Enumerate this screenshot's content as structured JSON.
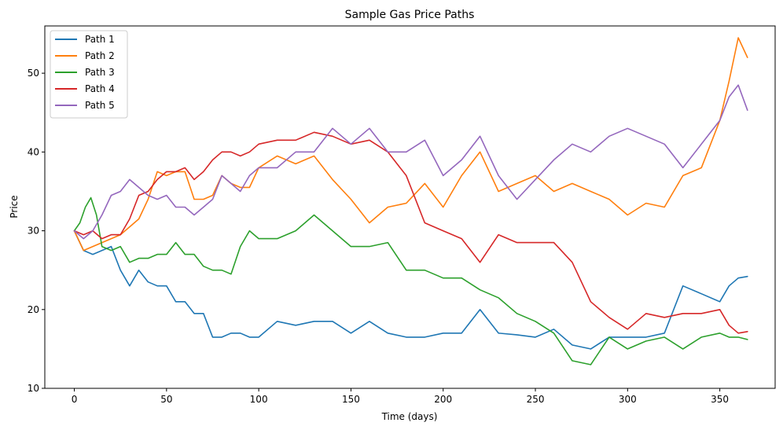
{
  "chart_data": {
    "type": "line",
    "title": "Sample Gas Price Paths",
    "xlabel": "Time (days)",
    "ylabel": "Price",
    "xlim": [
      -16,
      380
    ],
    "ylim": [
      10,
      56
    ],
    "xticks": [
      0,
      50,
      100,
      150,
      200,
      250,
      300,
      350
    ],
    "yticks": [
      10,
      20,
      30,
      40,
      50
    ],
    "legend_position": "top-left",
    "grid": false,
    "series": [
      {
        "name": "Path 1",
        "color": "#1f77b4",
        "x": [
          0,
          5,
          10,
          15,
          20,
          25,
          30,
          35,
          40,
          45,
          50,
          55,
          60,
          65,
          70,
          75,
          80,
          85,
          90,
          95,
          100,
          110,
          120,
          130,
          140,
          150,
          160,
          170,
          180,
          190,
          200,
          210,
          220,
          230,
          240,
          250,
          260,
          270,
          280,
          290,
          300,
          310,
          320,
          330,
          340,
          350,
          355,
          360,
          365
        ],
        "values": [
          30,
          27.5,
          27,
          27.5,
          28,
          25,
          23,
          25,
          23.5,
          23,
          23,
          21,
          21,
          19.5,
          19.5,
          16.5,
          16.5,
          17,
          17,
          16.5,
          16.5,
          18.5,
          18,
          18.5,
          18.5,
          17,
          18.5,
          17,
          16.5,
          16.5,
          17,
          17,
          20,
          17,
          16.8,
          16.5,
          17.5,
          15.5,
          15,
          16.5,
          16.5,
          16.5,
          17,
          23,
          22,
          21,
          23,
          24,
          24.2
        ]
      },
      {
        "name": "Path 2",
        "color": "#ff7f0e",
        "x": [
          0,
          5,
          10,
          15,
          20,
          25,
          30,
          35,
          40,
          45,
          50,
          55,
          60,
          65,
          70,
          75,
          80,
          85,
          90,
          95,
          100,
          110,
          120,
          130,
          140,
          150,
          160,
          170,
          180,
          190,
          200,
          210,
          220,
          230,
          240,
          250,
          260,
          270,
          280,
          290,
          300,
          310,
          320,
          330,
          340,
          350,
          355,
          360,
          365
        ],
        "values": [
          30,
          27.5,
          28,
          28.5,
          29,
          29.5,
          30.5,
          31.5,
          34,
          37.5,
          37,
          37.5,
          37.5,
          34,
          34,
          34.5,
          37,
          36,
          35.5,
          35.5,
          38,
          39.5,
          38.5,
          39.5,
          36.5,
          34,
          31,
          33,
          33.5,
          36,
          33,
          37,
          40,
          35,
          36,
          37,
          35,
          36,
          35,
          34,
          32,
          33.5,
          33,
          37,
          38,
          44,
          49,
          54.5,
          52
        ]
      },
      {
        "name": "Path 3",
        "color": "#2ca02c",
        "x": [
          0,
          3,
          6,
          9,
          12,
          15,
          20,
          25,
          30,
          35,
          40,
          45,
          50,
          55,
          60,
          65,
          70,
          75,
          80,
          85,
          90,
          95,
          100,
          110,
          120,
          130,
          140,
          150,
          160,
          170,
          180,
          190,
          200,
          210,
          220,
          230,
          240,
          250,
          260,
          270,
          280,
          290,
          300,
          310,
          320,
          330,
          340,
          350,
          355,
          360,
          365
        ],
        "values": [
          30,
          31,
          33,
          34.2,
          32,
          28,
          27.5,
          28,
          26,
          26.5,
          26.5,
          27,
          27,
          28.5,
          27,
          27,
          25.5,
          25,
          25,
          24.5,
          28,
          30,
          29,
          29,
          30,
          32,
          30,
          28,
          28,
          28.5,
          25,
          25,
          24,
          24,
          22.5,
          21.5,
          19.5,
          18.5,
          17,
          13.5,
          13,
          16.5,
          15,
          16,
          16.5,
          15,
          16.5,
          17,
          16.5,
          16.5,
          16.2
        ]
      },
      {
        "name": "Path 4",
        "color": "#d62728",
        "x": [
          0,
          5,
          10,
          15,
          20,
          25,
          30,
          35,
          40,
          45,
          50,
          55,
          60,
          65,
          70,
          75,
          80,
          85,
          90,
          95,
          100,
          110,
          120,
          130,
          140,
          150,
          160,
          170,
          180,
          190,
          200,
          210,
          220,
          230,
          240,
          250,
          260,
          270,
          280,
          290,
          300,
          310,
          320,
          330,
          340,
          350,
          355,
          360,
          365
        ],
        "values": [
          30,
          29.5,
          30,
          29,
          29.5,
          29.5,
          31.5,
          34.5,
          35,
          36.5,
          37.5,
          37.5,
          38,
          36.5,
          37.5,
          39,
          40,
          40,
          39.5,
          40,
          41,
          41.5,
          41.5,
          42.5,
          42,
          41,
          41.5,
          40,
          37,
          31,
          30,
          29,
          26,
          29.5,
          28.5,
          28.5,
          28.5,
          26,
          21,
          19,
          17.5,
          19.5,
          19,
          19.5,
          19.5,
          20,
          18,
          17,
          17.2
        ]
      },
      {
        "name": "Path 5",
        "color": "#9467bd",
        "x": [
          0,
          5,
          10,
          15,
          20,
          25,
          30,
          35,
          40,
          45,
          50,
          55,
          60,
          65,
          70,
          75,
          80,
          85,
          90,
          95,
          100,
          110,
          120,
          130,
          140,
          150,
          160,
          170,
          180,
          190,
          200,
          210,
          220,
          230,
          240,
          250,
          260,
          270,
          280,
          290,
          300,
          310,
          320,
          330,
          340,
          350,
          355,
          360,
          365
        ],
        "values": [
          30,
          29,
          30,
          32,
          34.5,
          35,
          36.5,
          35.5,
          34.5,
          34,
          34.5,
          33,
          33,
          32,
          33,
          34,
          37,
          36,
          35,
          37,
          38,
          38,
          40,
          40,
          43,
          41,
          43,
          40,
          40,
          41.5,
          37,
          39,
          42,
          37,
          34,
          36.5,
          39,
          41,
          40,
          42,
          43,
          42,
          41,
          38,
          41,
          44,
          47,
          48.5,
          45.3
        ]
      }
    ]
  }
}
